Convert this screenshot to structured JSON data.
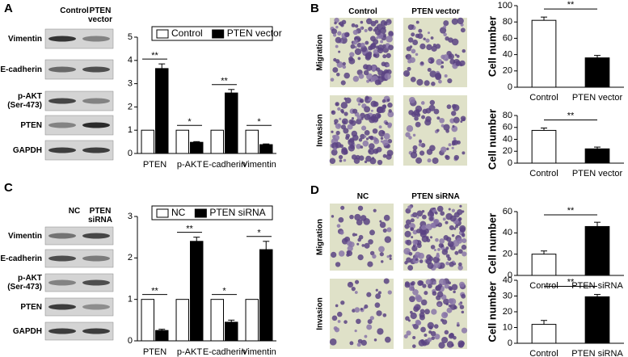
{
  "panels": [
    {
      "label": "A",
      "headers": [
        "Control",
        "PTEN vector"
      ],
      "rows": [
        "Vimentin",
        "E-cadherin",
        "p-AKT (Ser-473)",
        "PTEN",
        "GAPDH"
      ]
    },
    {
      "label": "B",
      "headers": [
        "Control",
        "PTEN vector"
      ],
      "rows": [
        "Migration",
        "Invasion"
      ]
    },
    {
      "label": "C",
      "headers": [
        "NC",
        "PTEN siRNA"
      ],
      "rows": [
        "Vimentin",
        "E-cadherin",
        "p-AKT (Ser-473)",
        "PTEN",
        "GAPDH"
      ]
    },
    {
      "label": "D",
      "headers": [
        "NC",
        "PTEN siRNA"
      ],
      "rows": [
        "Migration",
        "Invasion"
      ]
    }
  ],
  "chart_data": [
    {
      "type": "grouped_bar",
      "categories": [
        "PTEN",
        "p-AKT",
        "E-cadherin",
        "Vimentin"
      ],
      "series": [
        {
          "name": "Control",
          "color": "#ffffff",
          "values": [
            1,
            1,
            1,
            1
          ]
        },
        {
          "name": "PTEN vector",
          "color": "#000000",
          "values": [
            3.65,
            0.48,
            2.6,
            0.38
          ],
          "errors": [
            0.2,
            0.03,
            0.15,
            0.03
          ]
        }
      ],
      "significance": [
        "**",
        "*",
        "**",
        "*"
      ],
      "ylim": [
        0,
        5
      ],
      "yticks": [
        0,
        1,
        2,
        3,
        4,
        5
      ],
      "legend": "top"
    },
    {
      "type": "grouped_bar",
      "categories": [
        "PTEN",
        "p-AKT",
        "E-cadherin",
        "Vimentin"
      ],
      "series": [
        {
          "name": "NC",
          "color": "#ffffff",
          "values": [
            1,
            1,
            1,
            1
          ]
        },
        {
          "name": "PTEN siRNA",
          "color": "#000000",
          "values": [
            0.25,
            2.4,
            0.45,
            2.2
          ],
          "errors": [
            0.03,
            0.1,
            0.05,
            0.2
          ]
        }
      ],
      "significance": [
        "**",
        "**",
        "*",
        "*"
      ],
      "ylim": [
        0,
        3
      ],
      "yticks": [
        0,
        1,
        2,
        3
      ],
      "legend": "top"
    },
    {
      "type": "bar",
      "categories": [
        "Control",
        "PTEN vector"
      ],
      "values": [
        82,
        36
      ],
      "errors": [
        4,
        3
      ],
      "colors": [
        "#ffffff",
        "#000000"
      ],
      "ylabel": "Cell number",
      "significance": "**",
      "ylim": [
        0,
        100
      ],
      "yticks": [
        0,
        20,
        40,
        60,
        80,
        100
      ]
    },
    {
      "type": "bar",
      "categories": [
        "Control",
        "PTEN vector"
      ],
      "values": [
        55,
        24
      ],
      "errors": [
        4,
        3
      ],
      "colors": [
        "#ffffff",
        "#000000"
      ],
      "ylabel": "Cell number",
      "significance": "**",
      "ylim": [
        0,
        80
      ],
      "yticks": [
        0,
        20,
        40,
        60,
        80
      ]
    },
    {
      "type": "bar",
      "categories": [
        "Control",
        "PTEN siRNA"
      ],
      "values": [
        20,
        46
      ],
      "errors": [
        3,
        4
      ],
      "colors": [
        "#ffffff",
        "#000000"
      ],
      "ylabel": "Cell number",
      "significance": "**",
      "ylim": [
        0,
        60
      ],
      "yticks": [
        0,
        20,
        40,
        60
      ]
    },
    {
      "type": "bar",
      "categories": [
        "Control",
        "PTEN siRNA"
      ],
      "values": [
        12,
        29.5
      ],
      "errors": [
        2.5,
        1.5
      ],
      "colors": [
        "#ffffff",
        "#000000"
      ],
      "ylabel": "Cell number",
      "significance": "**",
      "ylim": [
        0,
        40
      ],
      "yticks": [
        0,
        10,
        20,
        30,
        40
      ]
    }
  ]
}
